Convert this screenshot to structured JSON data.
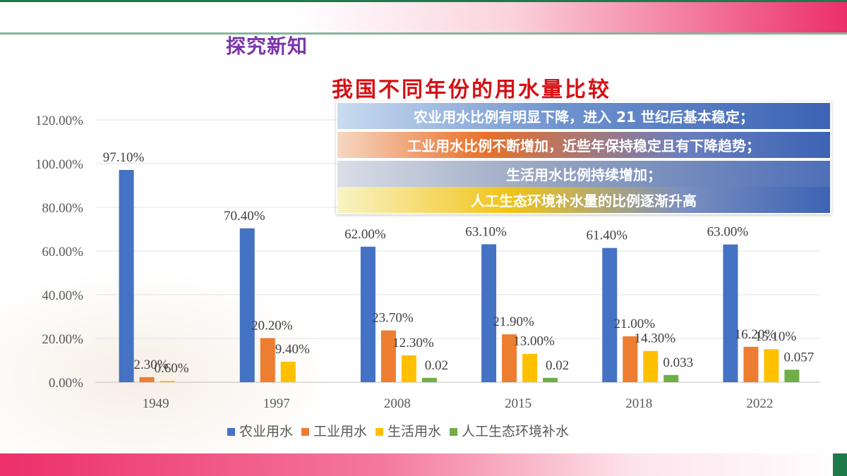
{
  "slide": {
    "section_title": "探究新知",
    "colors": {
      "top_bar_end": "#ec2f6a",
      "accent_green": "#1f7a4a",
      "title_purple": "#7a35a8",
      "title_red": "#d51014"
    }
  },
  "callouts": [
    "农业用水比例有明显下降，进入 21 世纪后基本稳定；",
    "工业用水比例不断增加，近些年保持稳定且有下降趋势；",
    "生活用水比例持续增加；",
    "人工生态环境补水量的比例逐渐升高"
  ],
  "chart_data": {
    "type": "bar",
    "title": "我国不同年份的用水量比较",
    "categories": [
      "1949",
      "1997",
      "2008",
      "2015",
      "2018",
      "2022"
    ],
    "ylim": [
      0,
      1.2
    ],
    "yticks": [
      "0.00%",
      "20.00%",
      "40.00%",
      "60.00%",
      "80.00%",
      "100.00%",
      "120.00%"
    ],
    "grid": true,
    "legend_position": "bottom",
    "series": [
      {
        "name": "农业用水",
        "color": "#4472c4",
        "values": [
          0.971,
          0.704,
          0.62,
          0.631,
          0.614,
          0.63
        ],
        "labels": [
          "97.10%",
          "70.40%",
          "62.00%",
          "63.10%",
          "61.40%",
          "63.00%"
        ]
      },
      {
        "name": "工业用水",
        "color": "#ed7d31",
        "values": [
          0.023,
          0.202,
          0.237,
          0.219,
          0.21,
          0.162
        ],
        "labels": [
          "2.30%",
          "20.20%",
          "23.70%",
          "21.90%",
          "21.00%",
          "16.20%"
        ]
      },
      {
        "name": "生活用水",
        "color": "#ffc000",
        "values": [
          0.006,
          0.094,
          0.123,
          0.13,
          0.143,
          0.151
        ],
        "labels": [
          "0.60%",
          "9.40%",
          "12.30%",
          "13.00%",
          "14.30%",
          "15.10%"
        ]
      },
      {
        "name": "人工生态环境补水",
        "color": "#70ad47",
        "values": [
          0,
          0,
          0.02,
          0.02,
          0.033,
          0.057
        ],
        "labels": [
          "",
          "",
          "0.02",
          "0.02",
          "0.033",
          "0.057"
        ]
      }
    ]
  }
}
